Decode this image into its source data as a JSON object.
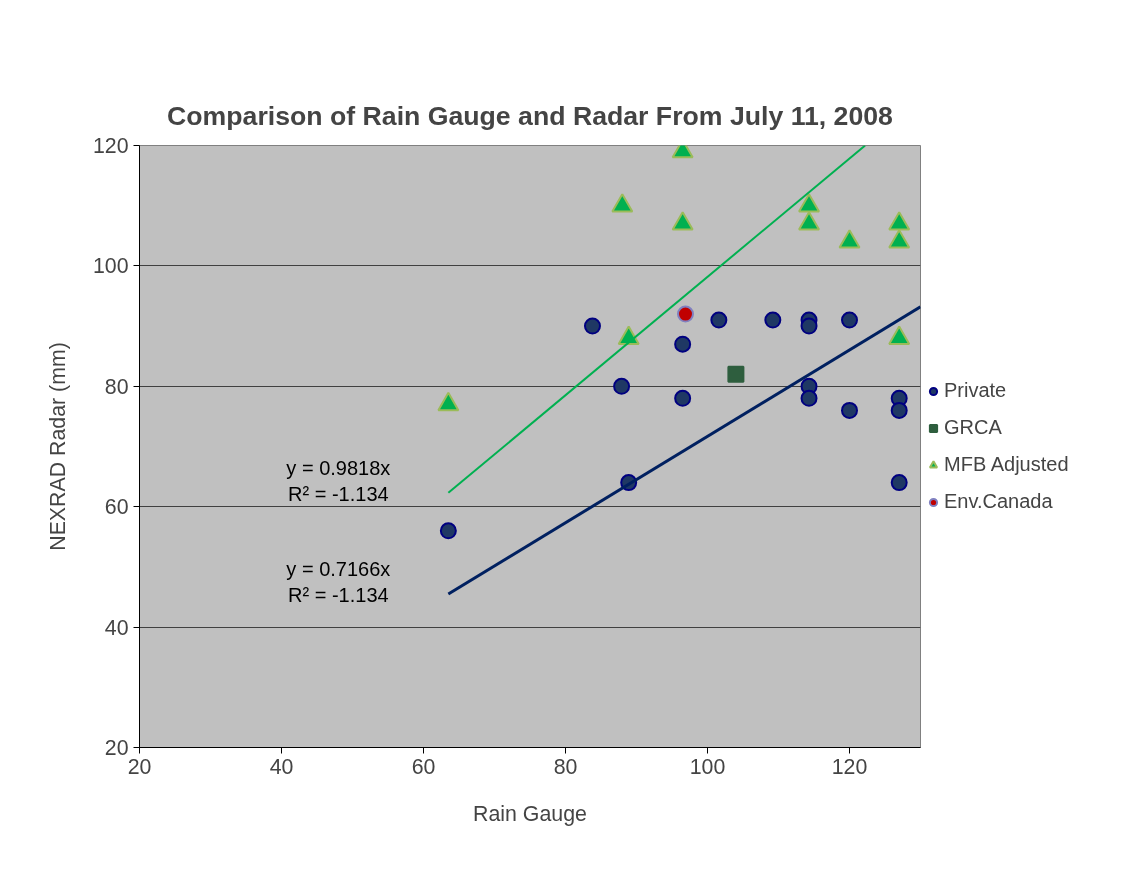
{
  "chart_data": {
    "type": "scatter",
    "title": "Comparison of Rain Gauge and Radar From July 11, 2008",
    "xlabel": "Rain Gauge",
    "ylabel": "NEXRAD Radar (mm)",
    "xlim": [
      20,
      130
    ],
    "xticks": [
      20,
      40,
      60,
      80,
      100,
      120
    ],
    "ylim": [
      20,
      120
    ],
    "yticks": [
      20,
      40,
      60,
      80,
      100,
      120
    ],
    "grid": "y",
    "legend": "right",
    "series": [
      {
        "name": "Private",
        "color": "#1f3864",
        "marker": "circle",
        "x": [
          63.5,
          83.8,
          87.9,
          88.9,
          96.5,
          96.5,
          101.6,
          109.2,
          114.3,
          114.3,
          114.3,
          114.3,
          120,
          120,
          127,
          127,
          127
        ],
        "values": [
          56,
          90,
          80,
          64,
          87,
          78,
          91,
          91,
          91,
          90,
          80,
          78,
          91,
          76,
          78,
          76,
          64
        ]
      },
      {
        "name": "GRCA",
        "color": "#2e5e3e",
        "marker": "square",
        "x": [
          104
        ],
        "values": [
          82
        ]
      },
      {
        "name": "MFB Adjusted",
        "color": "#00b050",
        "marker": "triangle",
        "x": [
          63.5,
          88,
          88.9,
          96.5,
          96.5,
          114.3,
          114.3,
          120,
          127,
          127,
          127
        ],
        "values": [
          77,
          110,
          88,
          119,
          107,
          110,
          107,
          104,
          107,
          104,
          88
        ]
      },
      {
        "name": "Env.Canada",
        "color": "#c00000",
        "marker": "circle",
        "x": [
          96.9
        ],
        "values": [
          92
        ]
      },
      {
        "type": "line",
        "color": "#00b050",
        "marker": "none",
        "x": [
          63.5,
          122.2
        ],
        "values": [
          62.3,
          120
        ]
      },
      {
        "type": "line",
        "color": "#002060",
        "marker": "none",
        "x": [
          63.5,
          130
        ],
        "values": [
          45.5,
          93.2
        ]
      }
    ],
    "annotations": [
      "y = 0.9818x\nR² = -1.134",
      "y = 0.7166x\nR² = -1.134"
    ]
  }
}
